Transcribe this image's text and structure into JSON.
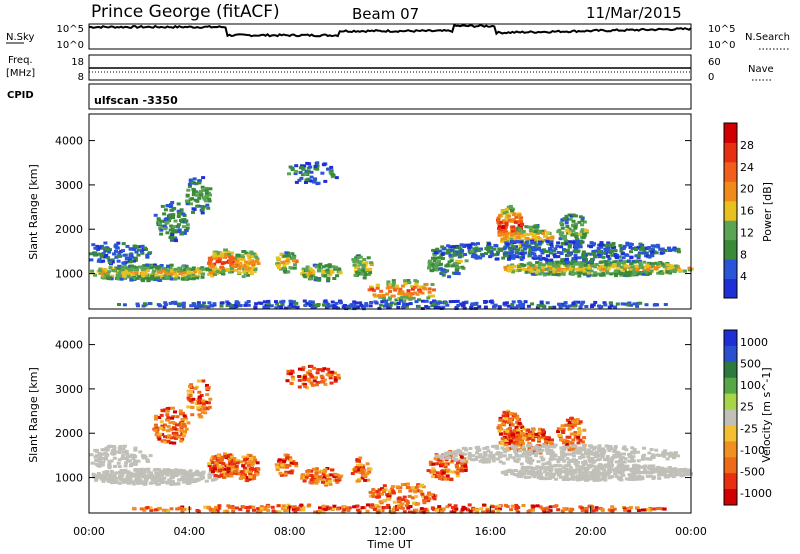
{
  "header": {
    "station": "Prince George (fitACF)",
    "beam": "Beam 07",
    "date": "11/Mar/2015"
  },
  "top_panels": {
    "nsky_label": "N.Sky",
    "nsky_ticks": [
      "10^5",
      "10^0"
    ],
    "nsearch_label": "N.Search",
    "nsearch_ticks": [
      "10^5",
      "10^0"
    ],
    "freq_label_1": "Freq.",
    "freq_label_2": "[MHz]",
    "freq_ticks": [
      "18",
      "8"
    ],
    "nave_label": "Nave",
    "nave_ticks": [
      "60",
      "0"
    ],
    "cpid_label": "CPID",
    "cpid_value": "ulfscan -3350"
  },
  "colors": {
    "power": [
      "#1f2fd6",
      "#2a55d8",
      "#3a8a3a",
      "#5aa555",
      "#e8c020",
      "#f08a1a",
      "#f0601a",
      "#e83010",
      "#d00000"
    ],
    "velocity": [
      "#1f2fd6",
      "#2a50d0",
      "#2e7a3e",
      "#55a845",
      "#a6d648",
      "#c0c0b8",
      "#f2c030",
      "#f09020",
      "#ee6a18",
      "#e83010",
      "#d00000"
    ],
    "ground_scatter": "#c0c0b8"
  },
  "chart_data": [
    {
      "type": "heatmap",
      "panel": "power",
      "xlabel": "",
      "ylabel": "Slant Range [km]",
      "y_ticks": [
        "1000",
        "2000",
        "3000",
        "4000"
      ],
      "ylim": [
        200,
        4600
      ],
      "colorbar_label": "Power [dB]",
      "colorbar_ticks": [
        "4",
        "8",
        "12",
        "16",
        "20",
        "24",
        "28"
      ],
      "colorbar_range": [
        0,
        32
      ]
    },
    {
      "type": "heatmap",
      "panel": "velocity",
      "xlabel": "Time UT",
      "ylabel": "Slant Range [km]",
      "y_ticks": [
        "1000",
        "2000",
        "3000",
        "4000"
      ],
      "x_ticks": [
        "00:00",
        "04:00",
        "08:00",
        "12:00",
        "16:00",
        "20:00",
        "00:00"
      ],
      "ylim": [
        200,
        4600
      ],
      "xlim_hours": [
        0,
        24
      ],
      "colorbar_label": "Velocity [m s^-1]",
      "colorbar_ticks": [
        "1000",
        "500",
        "100",
        "25",
        "-25",
        "-100",
        "-500",
        "-1000"
      ]
    }
  ]
}
